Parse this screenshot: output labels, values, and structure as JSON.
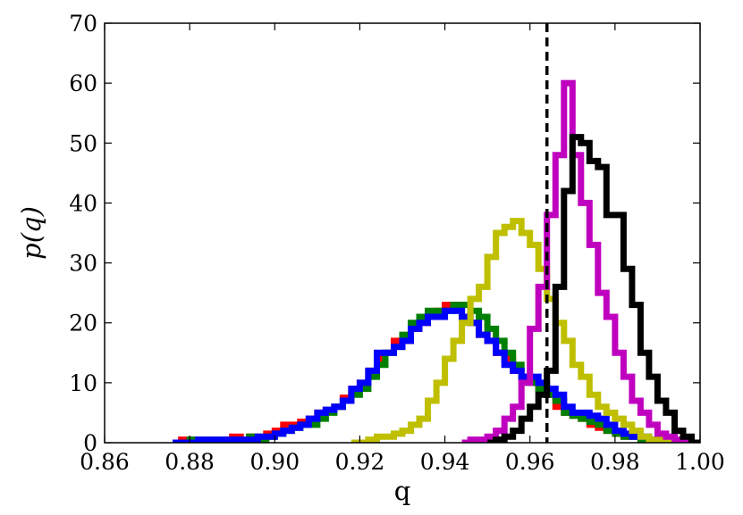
{
  "chart_data": {
    "type": "line",
    "subtype": "step-histogram",
    "title": "",
    "xlabel": "q",
    "ylabel": "p(q)",
    "xlim": [
      0.86,
      1.0
    ],
    "ylim": [
      0,
      70
    ],
    "xticks": [
      "0.86",
      "0.88",
      "0.90",
      "0.92",
      "0.94",
      "0.96",
      "0.98",
      "1.00"
    ],
    "yticks": [
      "0",
      "10",
      "20",
      "30",
      "40",
      "50",
      "60",
      "70"
    ],
    "grid": false,
    "legend": "none",
    "reference_line": {
      "x": 0.964,
      "style": "dashed",
      "color": "#000000"
    },
    "series": [
      {
        "color": "#ff0000",
        "x": [
          0.877,
          0.879,
          0.881,
          0.883,
          0.885,
          0.887,
          0.889,
          0.891,
          0.893,
          0.895,
          0.897,
          0.899,
          0.901,
          0.903,
          0.905,
          0.907,
          0.909,
          0.911,
          0.913,
          0.915,
          0.917,
          0.919,
          0.921,
          0.923,
          0.925,
          0.927,
          0.929,
          0.931,
          0.933,
          0.935,
          0.937,
          0.939,
          0.941,
          0.943,
          0.945,
          0.947,
          0.949,
          0.951,
          0.953,
          0.955,
          0.957,
          0.959,
          0.961,
          0.963,
          0.965,
          0.967,
          0.969,
          0.971,
          0.973,
          0.975,
          0.977,
          0.979,
          0.981,
          0.983,
          0.985,
          0.987,
          0.989,
          0.991,
          0.993,
          0.995,
          0.997,
          0.999
        ],
        "y": [
          0,
          0.5,
          0.5,
          0.5,
          0.5,
          0.5,
          0.5,
          1,
          0.5,
          1,
          1,
          1.5,
          2,
          3,
          3,
          3.5,
          4,
          5,
          5.5,
          6,
          7.5,
          9,
          10,
          12,
          14,
          15,
          17,
          17,
          19,
          20,
          21,
          22,
          23,
          23,
          21,
          20,
          18,
          17,
          15,
          14,
          12,
          11,
          10,
          9,
          8,
          6,
          5,
          4.5,
          4,
          3,
          2.5,
          2,
          1.5,
          1,
          1,
          0.5,
          0.5,
          0.5,
          0.5,
          0,
          0.5,
          0
        ]
      },
      {
        "color": "#008000",
        "x": [
          0.877,
          0.879,
          0.881,
          0.883,
          0.885,
          0.887,
          0.889,
          0.891,
          0.893,
          0.895,
          0.897,
          0.899,
          0.901,
          0.903,
          0.905,
          0.907,
          0.909,
          0.911,
          0.913,
          0.915,
          0.917,
          0.919,
          0.921,
          0.923,
          0.925,
          0.927,
          0.929,
          0.931,
          0.933,
          0.935,
          0.937,
          0.939,
          0.941,
          0.943,
          0.945,
          0.947,
          0.949,
          0.951,
          0.953,
          0.955,
          0.957,
          0.959,
          0.961,
          0.963,
          0.965,
          0.967,
          0.969,
          0.971,
          0.973,
          0.975,
          0.977,
          0.979,
          0.981,
          0.983,
          0.985,
          0.987,
          0.989,
          0.991,
          0.993,
          0.995,
          0.997,
          0.999
        ],
        "y": [
          0,
          0,
          0.5,
          0,
          0.5,
          0.5,
          0.5,
          0.5,
          0.5,
          1,
          0.5,
          1,
          1.5,
          2,
          2.5,
          3,
          3,
          4,
          5,
          6,
          7,
          8,
          9,
          11,
          13,
          15,
          16,
          18,
          20,
          21,
          22,
          22,
          22,
          23,
          23,
          22,
          21,
          19,
          17,
          15,
          13,
          11,
          10,
          9,
          8,
          7,
          5,
          4.5,
          4,
          3.5,
          3,
          2,
          1.5,
          1,
          1,
          0.5,
          0.5,
          0,
          0,
          0,
          0,
          0
        ]
      },
      {
        "color": "#0000ff",
        "x": [
          0.877,
          0.879,
          0.881,
          0.883,
          0.885,
          0.887,
          0.889,
          0.891,
          0.893,
          0.895,
          0.897,
          0.899,
          0.901,
          0.903,
          0.905,
          0.907,
          0.909,
          0.911,
          0.913,
          0.915,
          0.917,
          0.919,
          0.921,
          0.923,
          0.925,
          0.927,
          0.929,
          0.931,
          0.933,
          0.935,
          0.937,
          0.939,
          0.941,
          0.943,
          0.945,
          0.947,
          0.949,
          0.951,
          0.953,
          0.955,
          0.957,
          0.959,
          0.961,
          0.963,
          0.965,
          0.967,
          0.969,
          0.971,
          0.973,
          0.975,
          0.977,
          0.979,
          0.981,
          0.983,
          0.985,
          0.987,
          0.989,
          0.991,
          0.993,
          0.995,
          0.997,
          0.999
        ],
        "y": [
          0,
          0,
          0,
          0.5,
          0.5,
          0.5,
          0.5,
          0.5,
          0.5,
          0.5,
          1,
          1,
          1.5,
          2,
          2.5,
          3,
          4,
          5,
          5.5,
          6,
          7,
          9,
          10,
          12,
          15,
          15,
          16,
          17,
          19,
          20,
          21,
          21,
          22,
          22,
          21,
          20,
          18,
          17,
          15,
          13,
          12,
          11,
          11,
          10,
          9,
          8,
          6,
          5,
          5,
          4.5,
          4,
          3,
          2,
          1.5,
          1,
          1,
          0.5,
          0,
          0.5,
          0,
          0,
          0
        ]
      },
      {
        "color": "#bfbf00",
        "x": [
          0.919,
          0.921,
          0.923,
          0.925,
          0.927,
          0.929,
          0.931,
          0.933,
          0.935,
          0.937,
          0.939,
          0.941,
          0.943,
          0.945,
          0.947,
          0.949,
          0.951,
          0.953,
          0.955,
          0.957,
          0.959,
          0.961,
          0.963,
          0.965,
          0.967,
          0.969,
          0.971,
          0.973,
          0.975,
          0.977,
          0.979,
          0.981,
          0.983,
          0.985,
          0.987,
          0.989,
          0.991,
          0.993,
          0.995
        ],
        "y": [
          0,
          0,
          0.5,
          1,
          1,
          1.5,
          2,
          3,
          4,
          7,
          10,
          14,
          17,
          20,
          24,
          26,
          31,
          35,
          36,
          37,
          35,
          33,
          29,
          24,
          20,
          17,
          13,
          11,
          8,
          6,
          5,
          4,
          3,
          2,
          1,
          0.5,
          0.5,
          0,
          0
        ]
      },
      {
        "color": "#bf00bf",
        "x": [
          0.945,
          0.947,
          0.949,
          0.951,
          0.953,
          0.955,
          0.957,
          0.959,
          0.961,
          0.963,
          0.965,
          0.967,
          0.969,
          0.971,
          0.973,
          0.975,
          0.977,
          0.979,
          0.981,
          0.983,
          0.985,
          0.987,
          0.989,
          0.991,
          0.993,
          0.995,
          0.997,
          0.999
        ],
        "y": [
          0,
          0.5,
          0.5,
          1,
          2,
          4,
          6,
          10,
          19,
          26,
          38,
          48,
          60,
          48,
          40,
          33,
          25,
          21,
          15,
          11,
          7,
          5,
          3,
          1.5,
          1,
          0.5,
          0,
          0
        ]
      },
      {
        "color": "#000000",
        "x": [
          0.951,
          0.953,
          0.955,
          0.957,
          0.959,
          0.961,
          0.963,
          0.965,
          0.967,
          0.969,
          0.971,
          0.973,
          0.975,
          0.977,
          0.979,
          0.981,
          0.983,
          0.985,
          0.987,
          0.989,
          0.991,
          0.993,
          0.995,
          0.997,
          0.999
        ],
        "y": [
          0,
          0.5,
          1,
          2,
          4,
          6,
          8,
          12,
          26,
          42,
          51,
          50,
          47,
          46,
          38,
          38,
          29,
          23,
          15,
          11,
          7,
          5,
          2,
          1,
          0
        ]
      }
    ]
  }
}
